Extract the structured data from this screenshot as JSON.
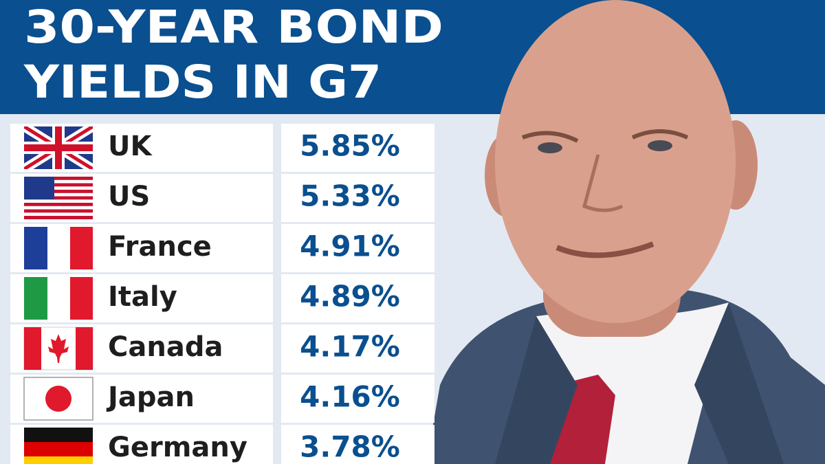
{
  "header": {
    "title_lines": [
      "30-YEAR BOND",
      "YIELDS IN G7"
    ]
  },
  "table": {
    "rows": [
      [
        "UK",
        "5.85%"
      ],
      [
        "US",
        "5.33%"
      ],
      [
        "France",
        "4.91%"
      ],
      [
        "Italy",
        "4.89%"
      ],
      [
        "Canada",
        "4.17%"
      ],
      [
        "Japan",
        "4.16%"
      ],
      [
        "Germany",
        "3.78%"
      ]
    ]
  }
}
